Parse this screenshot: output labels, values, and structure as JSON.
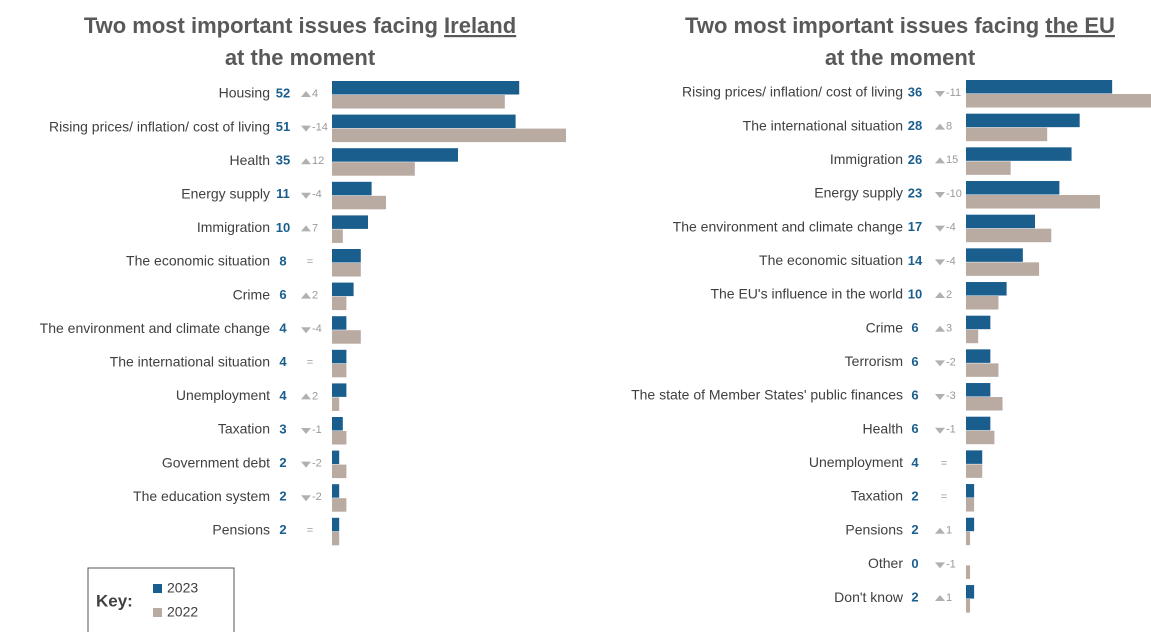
{
  "chart_data": [
    {
      "type": "bar",
      "orientation": "horizontal",
      "title": "Two most important issues facing",
      "title_emphasis": "Ireland",
      "title_end": "at the moment",
      "categories": [
        "Housing",
        "Rising prices/ inflation/ cost of living",
        "Health",
        "Energy supply",
        "Immigration",
        "The economic situation",
        "Crime",
        "The environment and climate change",
        "The international situation",
        "Unemployment",
        "Taxation",
        "Government debt",
        "The education system",
        "Pensions"
      ],
      "series": [
        {
          "name": "2023",
          "color": "#1a5e8e",
          "values": [
            52,
            51,
            35,
            11,
            10,
            8,
            6,
            4,
            4,
            4,
            3,
            2,
            2,
            2
          ]
        },
        {
          "name": "2022",
          "color": "#b9aaa2",
          "values": [
            48,
            65,
            23,
            15,
            3,
            8,
            4,
            8,
            4,
            2,
            4,
            4,
            4,
            2
          ]
        }
      ],
      "changes": {
        "values": [
          4,
          -14,
          12,
          -4,
          7,
          0,
          2,
          -4,
          0,
          2,
          -1,
          -2,
          -2,
          0
        ],
        "value_labels": [
          "4",
          "-14",
          "12",
          "-4",
          "7",
          "=",
          "2",
          "-4",
          "=",
          "2",
          "-1",
          "-2",
          "-2",
          "="
        ]
      }
    },
    {
      "type": "bar",
      "orientation": "horizontal",
      "title": "Two most important issues facing",
      "title_emphasis": "the EU",
      "title_end": "at the moment",
      "categories": [
        "Rising prices/ inflation/ cost of living",
        "The international situation",
        "Immigration",
        "Energy supply",
        "The environment and climate change",
        "The economic situation",
        "The EU's influence in the world",
        "Crime",
        "Terrorism",
        "The state of Member States' public finances",
        "Health",
        "Unemployment",
        "Taxation",
        "Pensions",
        "Other",
        "Don't know"
      ],
      "series": [
        {
          "name": "2023",
          "color": "#1a5e8e",
          "values": [
            36,
            28,
            26,
            23,
            17,
            14,
            10,
            6,
            6,
            6,
            6,
            4,
            2,
            2,
            0,
            2
          ]
        },
        {
          "name": "2022",
          "color": "#b9aaa2",
          "values": [
            47,
            20,
            11,
            33,
            21,
            18,
            8,
            3,
            8,
            9,
            7,
            4,
            2,
            1,
            1,
            1
          ]
        }
      ],
      "changes": {
        "values": [
          -11,
          8,
          15,
          -10,
          -4,
          -4,
          2,
          3,
          -2,
          -3,
          -1,
          0,
          0,
          1,
          -1,
          1
        ],
        "value_labels": [
          "-11",
          "8",
          "15",
          "-10",
          "-4",
          "-4",
          "2",
          "3",
          "-2",
          "-3",
          "-1",
          "=",
          "=",
          "1",
          "-1",
          "1"
        ]
      }
    }
  ],
  "key": {
    "title": "Key:"
  }
}
